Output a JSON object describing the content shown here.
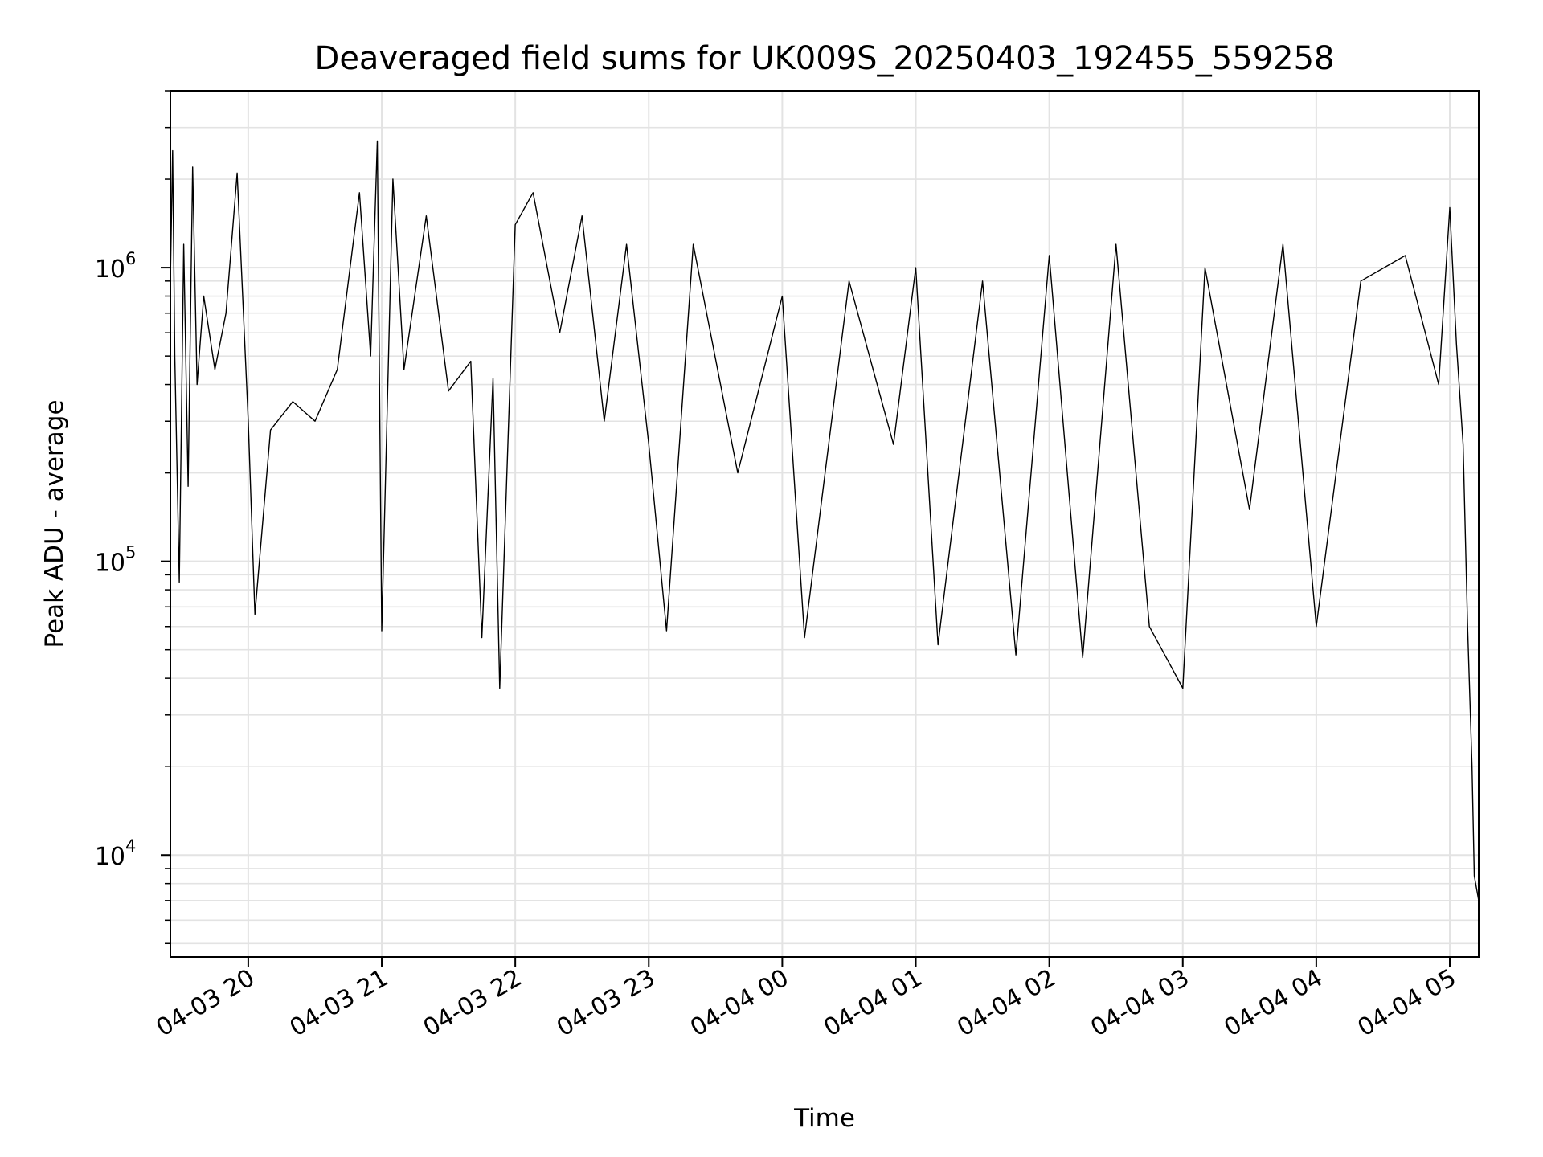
{
  "chart_data": {
    "type": "line",
    "title": "Deaveraged field sums for UK009S_20250403_192455_559258",
    "xlabel": "Time",
    "ylabel": "Peak ADU - average",
    "yscale": "log",
    "ylim": [
      4500,
      4000000
    ],
    "xlim": [
      "2025-04-03 19:25",
      "2025-04-04 05:13"
    ],
    "grid": true,
    "line_color": "#000000",
    "x_ticks": [
      {
        "t": "2025-04-03 20:00",
        "label": "04-03 20"
      },
      {
        "t": "2025-04-03 21:00",
        "label": "04-03 21"
      },
      {
        "t": "2025-04-03 22:00",
        "label": "04-03 22"
      },
      {
        "t": "2025-04-03 23:00",
        "label": "04-03 23"
      },
      {
        "t": "2025-04-04 00:00",
        "label": "04-04 00"
      },
      {
        "t": "2025-04-04 01:00",
        "label": "04-04 01"
      },
      {
        "t": "2025-04-04 02:00",
        "label": "04-04 02"
      },
      {
        "t": "2025-04-04 03:00",
        "label": "04-04 03"
      },
      {
        "t": "2025-04-04 04:00",
        "label": "04-04 04"
      },
      {
        "t": "2025-04-04 05:00",
        "label": "04-04 05"
      }
    ],
    "y_ticks": [
      {
        "value": 10000,
        "base": "10",
        "exp": "4"
      },
      {
        "value": 100000,
        "base": "10",
        "exp": "5"
      },
      {
        "value": 1000000,
        "base": "10",
        "exp": "6"
      }
    ],
    "series": [
      {
        "points": [
          [
            "2025-04-03 19:25",
            900000
          ],
          [
            "2025-04-03 19:26",
            2500000
          ],
          [
            "2025-04-03 19:27",
            500000
          ],
          [
            "2025-04-03 19:29",
            85000
          ],
          [
            "2025-04-03 19:31",
            1200000
          ],
          [
            "2025-04-03 19:33",
            180000
          ],
          [
            "2025-04-03 19:35",
            2200000
          ],
          [
            "2025-04-03 19:37",
            400000
          ],
          [
            "2025-04-03 19:40",
            800000
          ],
          [
            "2025-04-03 19:45",
            450000
          ],
          [
            "2025-04-03 19:50",
            700000
          ],
          [
            "2025-04-03 19:55",
            2100000
          ],
          [
            "2025-04-03 20:00",
            300000
          ],
          [
            "2025-04-03 20:03",
            66000
          ],
          [
            "2025-04-03 20:10",
            280000
          ],
          [
            "2025-04-03 20:20",
            350000
          ],
          [
            "2025-04-03 20:30",
            300000
          ],
          [
            "2025-04-03 20:40",
            450000
          ],
          [
            "2025-04-03 20:50",
            1800000
          ],
          [
            "2025-04-03 20:55",
            500000
          ],
          [
            "2025-04-03 20:58",
            2700000
          ],
          [
            "2025-04-03 21:00",
            58000
          ],
          [
            "2025-04-03 21:05",
            2000000
          ],
          [
            "2025-04-03 21:10",
            450000
          ],
          [
            "2025-04-03 21:20",
            1500000
          ],
          [
            "2025-04-03 21:30",
            380000
          ],
          [
            "2025-04-03 21:40",
            480000
          ],
          [
            "2025-04-03 21:45",
            55000
          ],
          [
            "2025-04-03 21:50",
            420000
          ],
          [
            "2025-04-03 21:53",
            37000
          ],
          [
            "2025-04-03 22:00",
            1400000
          ],
          [
            "2025-04-03 22:08",
            1800000
          ],
          [
            "2025-04-03 22:20",
            600000
          ],
          [
            "2025-04-03 22:30",
            1500000
          ],
          [
            "2025-04-03 22:40",
            300000
          ],
          [
            "2025-04-03 22:50",
            1200000
          ],
          [
            "2025-04-03 23:00",
            250000
          ],
          [
            "2025-04-03 23:08",
            58000
          ],
          [
            "2025-04-03 23:20",
            1200000
          ],
          [
            "2025-04-03 23:40",
            200000
          ],
          [
            "2025-04-04 00:00",
            800000
          ],
          [
            "2025-04-04 00:10",
            55000
          ],
          [
            "2025-04-04 00:30",
            900000
          ],
          [
            "2025-04-04 00:50",
            250000
          ],
          [
            "2025-04-04 01:00",
            1000000
          ],
          [
            "2025-04-04 01:10",
            52000
          ],
          [
            "2025-04-04 01:30",
            900000
          ],
          [
            "2025-04-04 01:45",
            48000
          ],
          [
            "2025-04-04 02:00",
            1100000
          ],
          [
            "2025-04-04 02:15",
            47000
          ],
          [
            "2025-04-04 02:30",
            1200000
          ],
          [
            "2025-04-04 02:45",
            60000
          ],
          [
            "2025-04-04 03:00",
            37000
          ],
          [
            "2025-04-04 03:10",
            1000000
          ],
          [
            "2025-04-04 03:30",
            150000
          ],
          [
            "2025-04-04 03:45",
            1200000
          ],
          [
            "2025-04-04 04:00",
            60000
          ],
          [
            "2025-04-04 04:20",
            900000
          ],
          [
            "2025-04-04 04:40",
            1100000
          ],
          [
            "2025-04-04 04:55",
            400000
          ],
          [
            "2025-04-04 05:00",
            1600000
          ],
          [
            "2025-04-04 05:03",
            550000
          ],
          [
            "2025-04-04 05:06",
            250000
          ],
          [
            "2025-04-04 05:08",
            60000
          ],
          [
            "2025-04-04 05:10",
            20000
          ],
          [
            "2025-04-04 05:11",
            8500
          ],
          [
            "2025-04-04 05:13",
            7000
          ]
        ]
      }
    ]
  }
}
